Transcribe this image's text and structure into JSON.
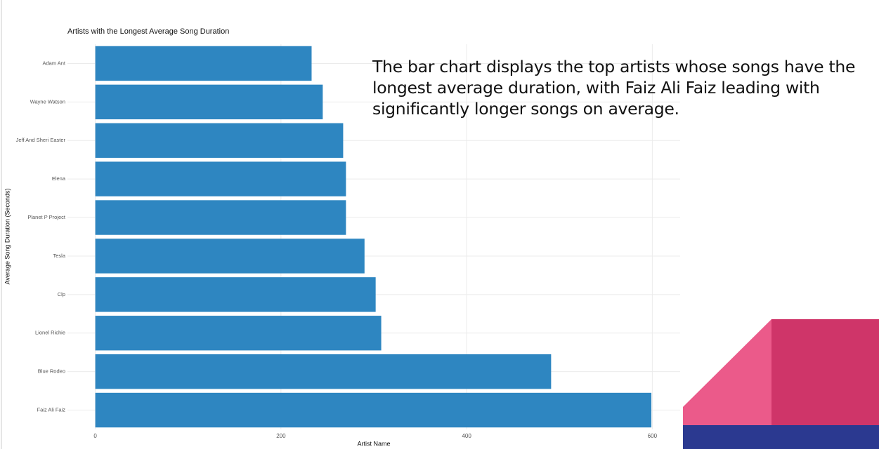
{
  "chart_data": {
    "type": "bar",
    "orientation": "horizontal",
    "title": "Artists with the Longest Average Song Duration",
    "x_label": "Artist Name",
    "y_label": "Average Song Duration (Seconds)",
    "categories": [
      "Adam Ant",
      "Wayne Watson",
      "Jeff And Sheri Easter",
      "Elena",
      "Planet P Project",
      "Tesla",
      "Clp",
      "Lionel Richie",
      "Blue Rodeo",
      "Faiz Ali Faiz"
    ],
    "values": [
      233,
      245,
      267,
      270,
      270,
      290,
      302,
      308,
      491,
      599
    ],
    "color": "#2e86c1",
    "xlim": [
      -30,
      630
    ],
    "xticks": [
      0,
      200,
      400,
      600
    ],
    "grid": true
  },
  "slide": {
    "text": "The bar chart displays the top artists whose songs have the longest average duration, with Faiz Ali Faiz leading with significantly longer songs on average."
  }
}
